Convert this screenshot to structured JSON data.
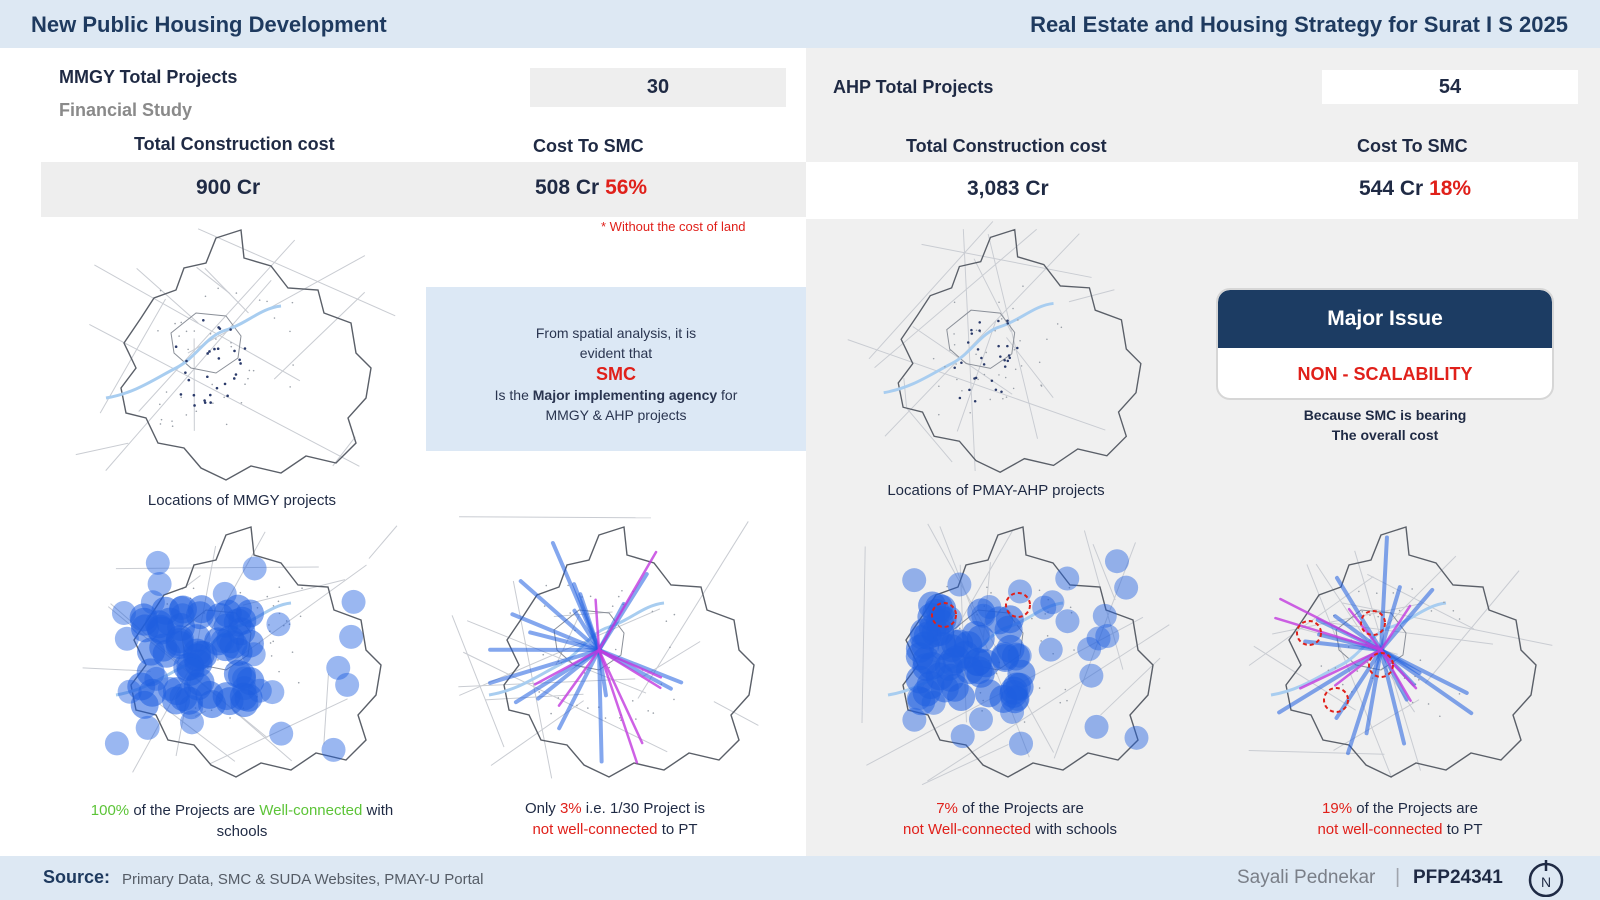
{
  "header": {
    "title_left": "New Public Housing Development",
    "title_right": "Real Estate and Housing Strategy for Surat I S 2025"
  },
  "mmgy": {
    "total_projects_label": "MMGY Total Projects",
    "total_projects_value": "30",
    "financial_study_label": "Financial Study",
    "construction_cost_label": "Total Construction cost",
    "cost_to_smc_label": "Cost To SMC",
    "construction_cost_value": "900 Cr",
    "cost_to_smc_value": "508 Cr",
    "cost_to_smc_percent": "56%",
    "note": "* Without the cost of land",
    "locations_caption": "Locations of MMGY projects",
    "schools_caption": {
      "pct": "100%",
      "mid": " of the Projects are ",
      "highlight": "Well-connected",
      "end": " with schools"
    },
    "pt_caption": {
      "pre": "Only ",
      "pct": "3%",
      "mid": " i.e. 1/30 Project is",
      "highlight": "not well-connected",
      "end": " to PT"
    }
  },
  "ahp": {
    "total_projects_label": "AHP Total Projects",
    "total_projects_value": "54",
    "construction_cost_label": "Total Construction cost",
    "cost_to_smc_label": "Cost To SMC",
    "construction_cost_value": "3,083 Cr",
    "cost_to_smc_value": "544 Cr",
    "cost_to_smc_percent": "18%",
    "locations_caption": "Locations of PMAY-AHP projects",
    "schools_caption": {
      "pct": "7%",
      "mid": " of the Projects are",
      "highlight": "not Well-connected",
      "end": " with schools"
    },
    "pt_caption": {
      "pct": "19%",
      "mid": " of the Projects are",
      "highlight": "not well-connected",
      "end": " to PT"
    }
  },
  "info": {
    "line1": "From spatial analysis, it is",
    "line2": "evident that",
    "smc": "SMC",
    "line3_pre": "Is the ",
    "line3_bold": "Major implementing agency",
    "line3_post": " for",
    "line4": "MMGY & AHP projects"
  },
  "issue": {
    "title": "Major Issue",
    "value": "NON - SCALABILITY",
    "sub_line1": "Because SMC is bearing",
    "sub_line2": "The overall cost"
  },
  "footer": {
    "source_label": "Source:",
    "source_text": "Primary Data, SMC & SUDA Websites, PMAY-U Portal",
    "author": "Sayali Pednekar",
    "separator": "|",
    "code": "PFP24341",
    "logo_letter": "N"
  },
  "colors": {
    "header_bg": "#dde8f3",
    "navy": "#1c3c63",
    "red": "#e0201a",
    "green": "#5cc437",
    "buffer_blue": "#1f5fe0",
    "transit_magenta": "#c23adf"
  }
}
